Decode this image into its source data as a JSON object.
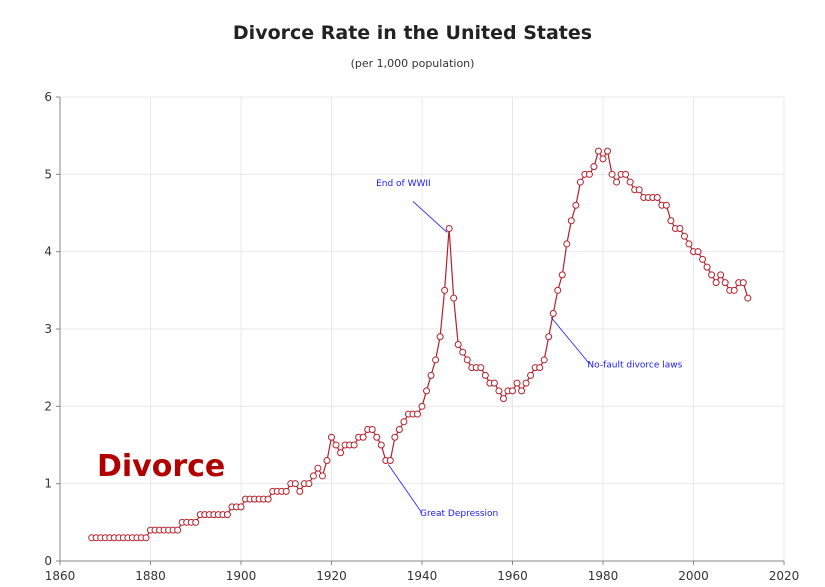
{
  "chart_data": {
    "type": "line",
    "title": "Divorce Rate in the United States",
    "subtitle": "(per 1,000 population)",
    "xlabel": "",
    "ylabel": "",
    "xlim": [
      1860,
      2020
    ],
    "ylim": [
      0,
      6
    ],
    "x_ticks": [
      1860,
      1880,
      1900,
      1920,
      1940,
      1960,
      1980,
      2000,
      2020
    ],
    "y_ticks": [
      0,
      1,
      2,
      3,
      4,
      5,
      6
    ],
    "grid": true,
    "series_color": "#b5202b",
    "annotation_color": "#1a1aff",
    "label_color": "#b00000",
    "x": [
      1867,
      1868,
      1869,
      1870,
      1871,
      1872,
      1873,
      1874,
      1875,
      1876,
      1877,
      1878,
      1879,
      1880,
      1881,
      1882,
      1883,
      1884,
      1885,
      1886,
      1887,
      1888,
      1889,
      1890,
      1891,
      1892,
      1893,
      1894,
      1895,
      1896,
      1897,
      1898,
      1899,
      1900,
      1901,
      1902,
      1903,
      1904,
      1905,
      1906,
      1907,
      1908,
      1909,
      1910,
      1911,
      1912,
      1913,
      1914,
      1915,
      1916,
      1917,
      1918,
      1919,
      1920,
      1921,
      1922,
      1923,
      1924,
      1925,
      1926,
      1927,
      1928,
      1929,
      1930,
      1931,
      1932,
      1933,
      1934,
      1935,
      1936,
      1937,
      1938,
      1939,
      1940,
      1941,
      1942,
      1943,
      1944,
      1945,
      1946,
      1947,
      1948,
      1949,
      1950,
      1951,
      1952,
      1953,
      1954,
      1955,
      1956,
      1957,
      1958,
      1959,
      1960,
      1961,
      1962,
      1963,
      1964,
      1965,
      1966,
      1967,
      1968,
      1969,
      1970,
      1971,
      1972,
      1973,
      1974,
      1975,
      1976,
      1977,
      1978,
      1979,
      1980,
      1981,
      1982,
      1983,
      1984,
      1985,
      1986,
      1987,
      1988,
      1989,
      1990,
      1991,
      1992,
      1993,
      1994,
      1995,
      1996,
      1997,
      1998,
      1999,
      2000,
      2001,
      2002,
      2003,
      2004,
      2005,
      2006,
      2007,
      2008,
      2009,
      2010,
      2011,
      2012
    ],
    "values": [
      0.3,
      0.3,
      0.3,
      0.3,
      0.3,
      0.3,
      0.3,
      0.3,
      0.3,
      0.3,
      0.3,
      0.3,
      0.3,
      0.4,
      0.4,
      0.4,
      0.4,
      0.4,
      0.4,
      0.4,
      0.5,
      0.5,
      0.5,
      0.5,
      0.6,
      0.6,
      0.6,
      0.6,
      0.6,
      0.6,
      0.6,
      0.7,
      0.7,
      0.7,
      0.8,
      0.8,
      0.8,
      0.8,
      0.8,
      0.8,
      0.9,
      0.9,
      0.9,
      0.9,
      1.0,
      1.0,
      0.9,
      1.0,
      1.0,
      1.1,
      1.2,
      1.1,
      1.3,
      1.6,
      1.5,
      1.4,
      1.5,
      1.5,
      1.5,
      1.6,
      1.6,
      1.7,
      1.7,
      1.6,
      1.5,
      1.3,
      1.3,
      1.6,
      1.7,
      1.8,
      1.9,
      1.9,
      1.9,
      2.0,
      2.2,
      2.4,
      2.6,
      2.9,
      3.5,
      4.3,
      3.4,
      2.8,
      2.7,
      2.6,
      2.5,
      2.5,
      2.5,
      2.4,
      2.3,
      2.3,
      2.2,
      2.1,
      2.2,
      2.2,
      2.3,
      2.2,
      2.3,
      2.4,
      2.5,
      2.5,
      2.6,
      2.9,
      3.2,
      3.5,
      3.7,
      4.1,
      4.4,
      4.6,
      4.9,
      5.0,
      5.0,
      5.1,
      5.3,
      5.2,
      5.3,
      5.0,
      4.9,
      5.0,
      5.0,
      4.9,
      4.8,
      4.8,
      4.7,
      4.7,
      4.7,
      4.7,
      4.6,
      4.6,
      4.4,
      4.3,
      4.3,
      4.2,
      4.1,
      4.0,
      4.0,
      3.9,
      3.8,
      3.7,
      3.6,
      3.7,
      3.6,
      3.5,
      3.5,
      3.6,
      3.6,
      3.4
    ],
    "annotations": [
      {
        "text": "End of WWII",
        "x": 1946,
        "y": 4.3
      },
      {
        "text": "Great Depression",
        "x": 1933,
        "y": 1.3
      },
      {
        "text": "No-fault divorce laws",
        "x": 1969,
        "y": 3.2
      }
    ],
    "corner_label": "Divorce"
  }
}
